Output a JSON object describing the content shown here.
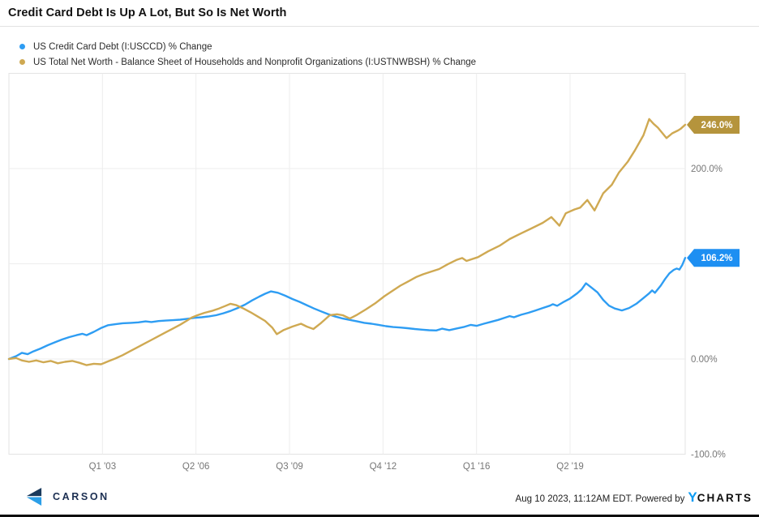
{
  "header": {
    "title": "Credit Card Debt Is Up A Lot, But So Is Net Worth"
  },
  "legend": {
    "items": [
      {
        "label": "US Credit Card Debt (I:USCCD) % Change",
        "color": "#2e9df3"
      },
      {
        "label": "US Total Net Worth - Balance Sheet of Households and Nonprofit Organizations (I:USTNWBSH) % Change",
        "color": "#cfa952"
      }
    ]
  },
  "footer": {
    "brand": "CARSON",
    "timestamp": "Aug 10 2023, 11:12AM EDT.",
    "powered_by": "Powered by",
    "ycharts_y": "Y",
    "ycharts_rest": "CHARTS"
  },
  "chart_data": {
    "type": "line",
    "title": "Credit Card Debt Is Up A Lot, But So Is Net Worth",
    "xlabel": "",
    "ylabel": "% Change",
    "grid": true,
    "legend_position": "top-left",
    "x_axis": {
      "range_years": [
        1999.75,
        2023.25
      ],
      "ticks": [
        {
          "t": 2003.0,
          "label": "Q1 '03"
        },
        {
          "t": 2006.25,
          "label": "Q2 '06"
        },
        {
          "t": 2009.5,
          "label": "Q3 '09"
        },
        {
          "t": 2012.75,
          "label": "Q4 '12"
        },
        {
          "t": 2016.0,
          "label": "Q1 '16"
        },
        {
          "t": 2019.25,
          "label": "Q2 '19"
        }
      ]
    },
    "y_axis": {
      "range": [
        -100,
        300
      ],
      "gridline_values": [
        200,
        100,
        0
      ],
      "labels": [
        {
          "value": 200,
          "text": "200.0%"
        },
        {
          "value": 0,
          "text": "0.00%"
        },
        {
          "value": -100,
          "text": "-100.0%"
        }
      ],
      "label_color": "#777777"
    },
    "series": [
      {
        "name": "US Credit Card Debt (I:USCCD) % Change",
        "id": "credit-card-debt",
        "color": "#2e9df3",
        "badge_color": "#1d8ff2",
        "end_value": 106.2,
        "end_label": "106.2%",
        "points": [
          [
            1999.75,
            0
          ],
          [
            2000.0,
            3
          ],
          [
            2000.2,
            6.5
          ],
          [
            2000.4,
            5
          ],
          [
            2000.6,
            8
          ],
          [
            2000.85,
            11
          ],
          [
            2001.1,
            14.5
          ],
          [
            2001.35,
            17.5
          ],
          [
            2001.6,
            20.5
          ],
          [
            2001.85,
            23
          ],
          [
            2002.1,
            25
          ],
          [
            2002.3,
            26.5
          ],
          [
            2002.45,
            25
          ],
          [
            2002.7,
            28.5
          ],
          [
            2002.95,
            32.5
          ],
          [
            2003.2,
            35.5
          ],
          [
            2003.45,
            36.5
          ],
          [
            2003.7,
            37.5
          ],
          [
            2004.0,
            38
          ],
          [
            2004.25,
            38.5
          ],
          [
            2004.5,
            39.5
          ],
          [
            2004.7,
            38.8
          ],
          [
            2004.95,
            39.8
          ],
          [
            2005.2,
            40.3
          ],
          [
            2005.45,
            40.8
          ],
          [
            2005.7,
            41.3
          ],
          [
            2005.95,
            42.2
          ],
          [
            2006.2,
            43.2
          ],
          [
            2006.45,
            43.8
          ],
          [
            2006.7,
            44.8
          ],
          [
            2006.95,
            46
          ],
          [
            2007.2,
            48
          ],
          [
            2007.45,
            50.5
          ],
          [
            2007.7,
            53.5
          ],
          [
            2007.95,
            57
          ],
          [
            2008.2,
            61.5
          ],
          [
            2008.45,
            65.5
          ],
          [
            2008.65,
            68.5
          ],
          [
            2008.85,
            71
          ],
          [
            2009.1,
            69.5
          ],
          [
            2009.35,
            66.5
          ],
          [
            2009.6,
            63
          ],
          [
            2009.85,
            60
          ],
          [
            2010.1,
            56.5
          ],
          [
            2010.35,
            53
          ],
          [
            2010.6,
            50
          ],
          [
            2010.85,
            47
          ],
          [
            2011.1,
            44.5
          ],
          [
            2011.35,
            42.5
          ],
          [
            2011.6,
            41
          ],
          [
            2011.85,
            39.5
          ],
          [
            2012.1,
            38
          ],
          [
            2012.35,
            37
          ],
          [
            2012.6,
            35.8
          ],
          [
            2012.85,
            34.5
          ],
          [
            2013.1,
            33.5
          ],
          [
            2013.35,
            33
          ],
          [
            2013.6,
            32.3
          ],
          [
            2013.85,
            31.5
          ],
          [
            2014.1,
            30.8
          ],
          [
            2014.35,
            30.2
          ],
          [
            2014.6,
            30
          ],
          [
            2014.8,
            31.8
          ],
          [
            2015.05,
            30.3
          ],
          [
            2015.3,
            32
          ],
          [
            2015.55,
            33.5
          ],
          [
            2015.8,
            35.8
          ],
          [
            2016.0,
            34.8
          ],
          [
            2016.25,
            37
          ],
          [
            2016.5,
            39
          ],
          [
            2016.75,
            41
          ],
          [
            2017.0,
            43.5
          ],
          [
            2017.15,
            45
          ],
          [
            2017.3,
            43.8
          ],
          [
            2017.55,
            46.5
          ],
          [
            2017.8,
            48.5
          ],
          [
            2018.05,
            51
          ],
          [
            2018.3,
            53.5
          ],
          [
            2018.55,
            56
          ],
          [
            2018.65,
            57.5
          ],
          [
            2018.8,
            55.8
          ],
          [
            2019.0,
            59.5
          ],
          [
            2019.25,
            63.5
          ],
          [
            2019.5,
            69
          ],
          [
            2019.65,
            73
          ],
          [
            2019.8,
            79.5
          ],
          [
            2019.95,
            76
          ],
          [
            2020.2,
            70
          ],
          [
            2020.4,
            62
          ],
          [
            2020.6,
            56
          ],
          [
            2020.8,
            53
          ],
          [
            2021.05,
            51
          ],
          [
            2021.3,
            53.5
          ],
          [
            2021.55,
            58
          ],
          [
            2021.8,
            64
          ],
          [
            2022.0,
            69
          ],
          [
            2022.1,
            72
          ],
          [
            2022.2,
            69.5
          ],
          [
            2022.4,
            77
          ],
          [
            2022.55,
            84
          ],
          [
            2022.7,
            90
          ],
          [
            2022.85,
            93.5
          ],
          [
            2022.95,
            95
          ],
          [
            2023.05,
            94
          ],
          [
            2023.15,
            99
          ],
          [
            2023.25,
            106.2
          ]
        ]
      },
      {
        "name": "US Total Net Worth - Balance Sheet of Households and Nonprofit Organizations (I:USTNWBSH) % Change",
        "id": "net-worth",
        "color": "#cfa952",
        "badge_color": "#b5943c",
        "end_value": 246.0,
        "end_label": "246.0%",
        "points": [
          [
            1999.75,
            0
          ],
          [
            2000.0,
            1
          ],
          [
            2000.2,
            -1.5
          ],
          [
            2000.45,
            -3
          ],
          [
            2000.7,
            -1.5
          ],
          [
            2000.95,
            -3.5
          ],
          [
            2001.2,
            -2
          ],
          [
            2001.45,
            -4.5
          ],
          [
            2001.7,
            -3
          ],
          [
            2001.95,
            -2
          ],
          [
            2002.2,
            -4
          ],
          [
            2002.45,
            -6.5
          ],
          [
            2002.7,
            -5
          ],
          [
            2002.95,
            -5.5
          ],
          [
            2003.2,
            -2.5
          ],
          [
            2003.45,
            0.5
          ],
          [
            2003.7,
            4
          ],
          [
            2003.95,
            8
          ],
          [
            2004.2,
            12
          ],
          [
            2004.45,
            16
          ],
          [
            2004.7,
            20
          ],
          [
            2004.95,
            24
          ],
          [
            2005.2,
            28
          ],
          [
            2005.45,
            32
          ],
          [
            2005.7,
            36
          ],
          [
            2005.95,
            40.5
          ],
          [
            2006.1,
            43.5
          ],
          [
            2006.3,
            46
          ],
          [
            2006.55,
            48.5
          ],
          [
            2006.8,
            50.5
          ],
          [
            2007.05,
            53
          ],
          [
            2007.25,
            55.5
          ],
          [
            2007.45,
            58
          ],
          [
            2007.65,
            56.5
          ],
          [
            2007.9,
            53
          ],
          [
            2008.15,
            49
          ],
          [
            2008.4,
            44.5
          ],
          [
            2008.65,
            40
          ],
          [
            2008.9,
            33
          ],
          [
            2009.06,
            26
          ],
          [
            2009.3,
            30.5
          ],
          [
            2009.6,
            34
          ],
          [
            2009.9,
            37
          ],
          [
            2010.1,
            34
          ],
          [
            2010.33,
            31.5
          ],
          [
            2010.6,
            38
          ],
          [
            2010.9,
            46
          ],
          [
            2011.15,
            47
          ],
          [
            2011.35,
            46
          ],
          [
            2011.6,
            42.5
          ],
          [
            2011.85,
            46.5
          ],
          [
            2012.15,
            52
          ],
          [
            2012.5,
            59
          ],
          [
            2012.8,
            66
          ],
          [
            2013.1,
            72
          ],
          [
            2013.35,
            77
          ],
          [
            2013.6,
            81
          ],
          [
            2013.9,
            86
          ],
          [
            2014.15,
            89
          ],
          [
            2014.45,
            92
          ],
          [
            2014.7,
            94.5
          ],
          [
            2015.0,
            99.5
          ],
          [
            2015.3,
            104
          ],
          [
            2015.5,
            106
          ],
          [
            2015.65,
            103
          ],
          [
            2016.05,
            107
          ],
          [
            2016.4,
            113
          ],
          [
            2016.8,
            119
          ],
          [
            2017.15,
            126
          ],
          [
            2017.55,
            132
          ],
          [
            2017.9,
            137
          ],
          [
            2018.3,
            143
          ],
          [
            2018.6,
            149
          ],
          [
            2018.88,
            140
          ],
          [
            2019.1,
            153
          ],
          [
            2019.4,
            157
          ],
          [
            2019.6,
            159
          ],
          [
            2019.85,
            167
          ],
          [
            2020.1,
            156
          ],
          [
            2020.4,
            174
          ],
          [
            2020.7,
            183
          ],
          [
            2020.95,
            196
          ],
          [
            2021.25,
            207
          ],
          [
            2021.5,
            219
          ],
          [
            2021.8,
            235
          ],
          [
            2022.0,
            252
          ],
          [
            2022.15,
            247
          ],
          [
            2022.3,
            243
          ],
          [
            2022.6,
            232
          ],
          [
            2022.8,
            237
          ],
          [
            2023.0,
            240
          ],
          [
            2023.1,
            242
          ],
          [
            2023.25,
            246
          ]
        ]
      }
    ]
  }
}
